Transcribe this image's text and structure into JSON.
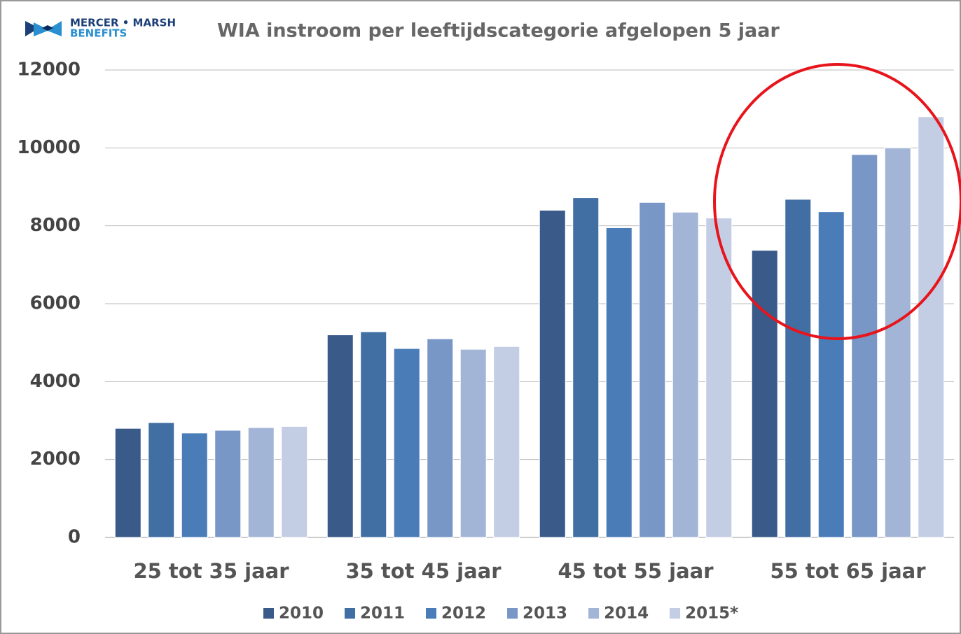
{
  "chart_data": {
    "type": "bar",
    "title": "WIA instroom per leeftijdscategorie afgelopen 5 jaar",
    "annotations": [
      "MERCER • MARSH",
      "BENEFITS"
    ],
    "categories": [
      "25 tot 35 jaar",
      "35 tot 45 jaar",
      "45 tot 55 jaar",
      "55 tot 65 jaar"
    ],
    "series": [
      {
        "name": "2010",
        "color": "#3a5a8a",
        "values": [
          2800,
          5200,
          8400,
          7370
        ]
      },
      {
        "name": "2011",
        "color": "#416ea3",
        "values": [
          2950,
          5280,
          8720,
          8680
        ]
      },
      {
        "name": "2012",
        "color": "#4a7cb8",
        "values": [
          2680,
          4850,
          7950,
          8360
        ]
      },
      {
        "name": "2013",
        "color": "#7896c6",
        "values": [
          2750,
          5100,
          8600,
          9830
        ]
      },
      {
        "name": "2014",
        "color": "#a3b5d6",
        "values": [
          2820,
          4830,
          8350,
          10000
        ]
      },
      {
        "name": "2015*",
        "color": "#c3cde3",
        "values": [
          2850,
          4900,
          8200,
          10800
        ]
      }
    ],
    "ylim": [
      0,
      12000
    ],
    "yticks": [
      0,
      2000,
      4000,
      6000,
      8000,
      10000,
      12000
    ],
    "grid": true,
    "legend": "bottom"
  }
}
